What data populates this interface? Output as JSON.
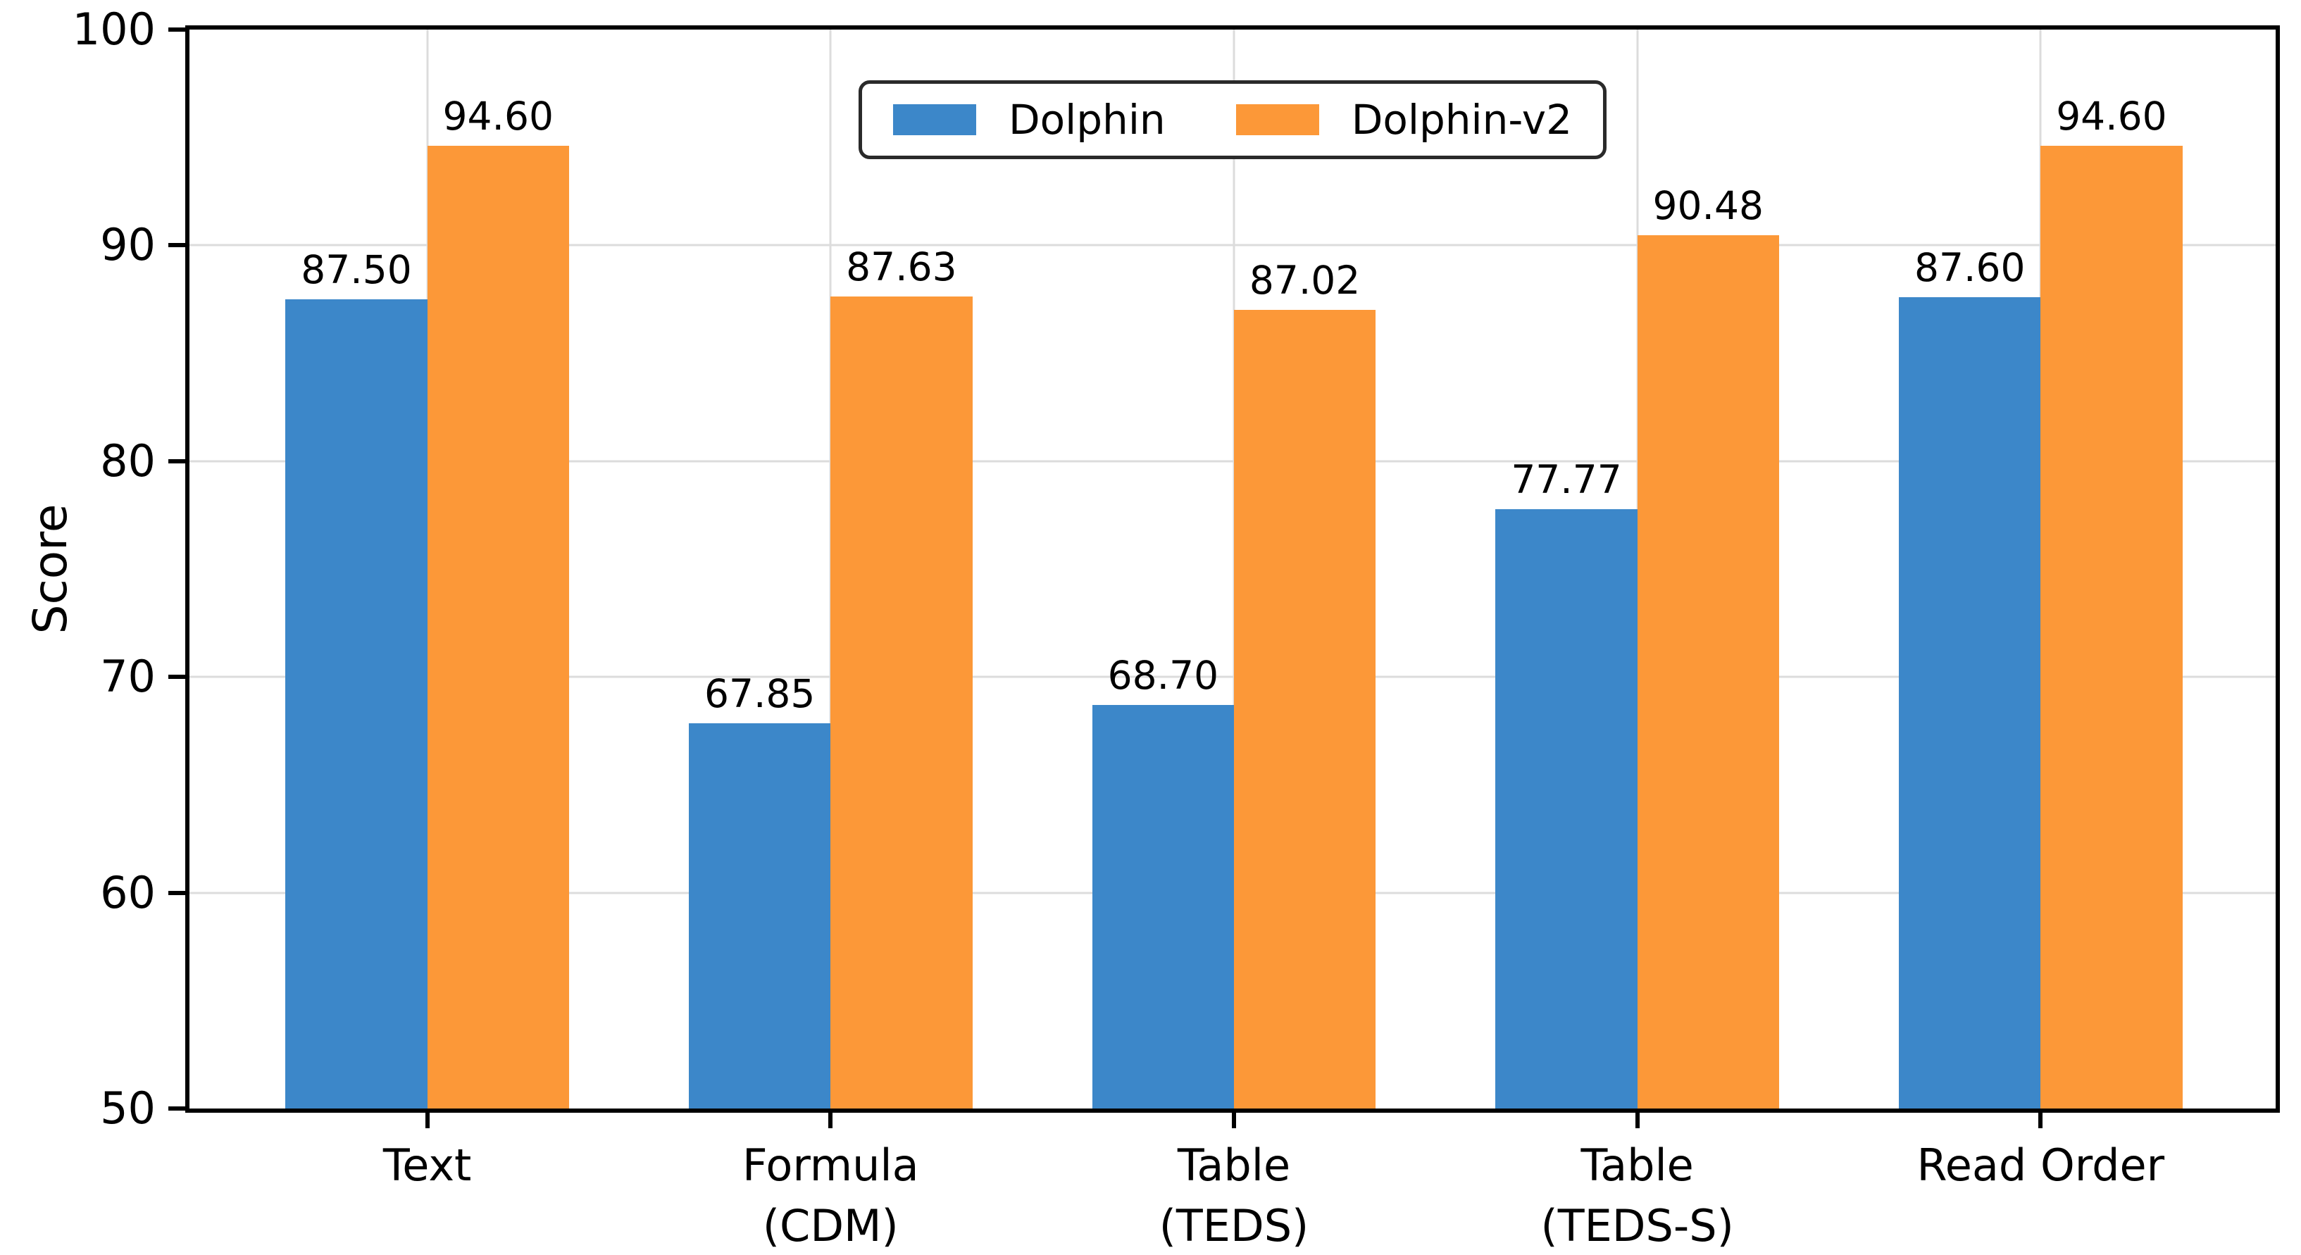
{
  "chart_data": {
    "type": "bar",
    "title": "",
    "xlabel": "",
    "ylabel": "Score",
    "ylim": [
      50,
      100
    ],
    "yticks": [
      50,
      60,
      70,
      80,
      90,
      100
    ],
    "grid": true,
    "legend_position": "upper center",
    "categories": [
      {
        "label": "Text",
        "sublabel": ""
      },
      {
        "label": "Formula",
        "sublabel": "(CDM)"
      },
      {
        "label": "Table",
        "sublabel": "(TEDS)"
      },
      {
        "label": "Table",
        "sublabel": "(TEDS-S)"
      },
      {
        "label": "Read Order",
        "sublabel": ""
      }
    ],
    "series": [
      {
        "name": "Dolphin",
        "color": "#3c87c9",
        "values": [
          87.5,
          67.85,
          68.7,
          77.77,
          87.6
        ]
      },
      {
        "name": "Dolphin-v2",
        "color": "#fc9838",
        "values": [
          94.6,
          87.63,
          87.02,
          90.48,
          94.6
        ]
      }
    ],
    "value_label_decimals": 2
  }
}
